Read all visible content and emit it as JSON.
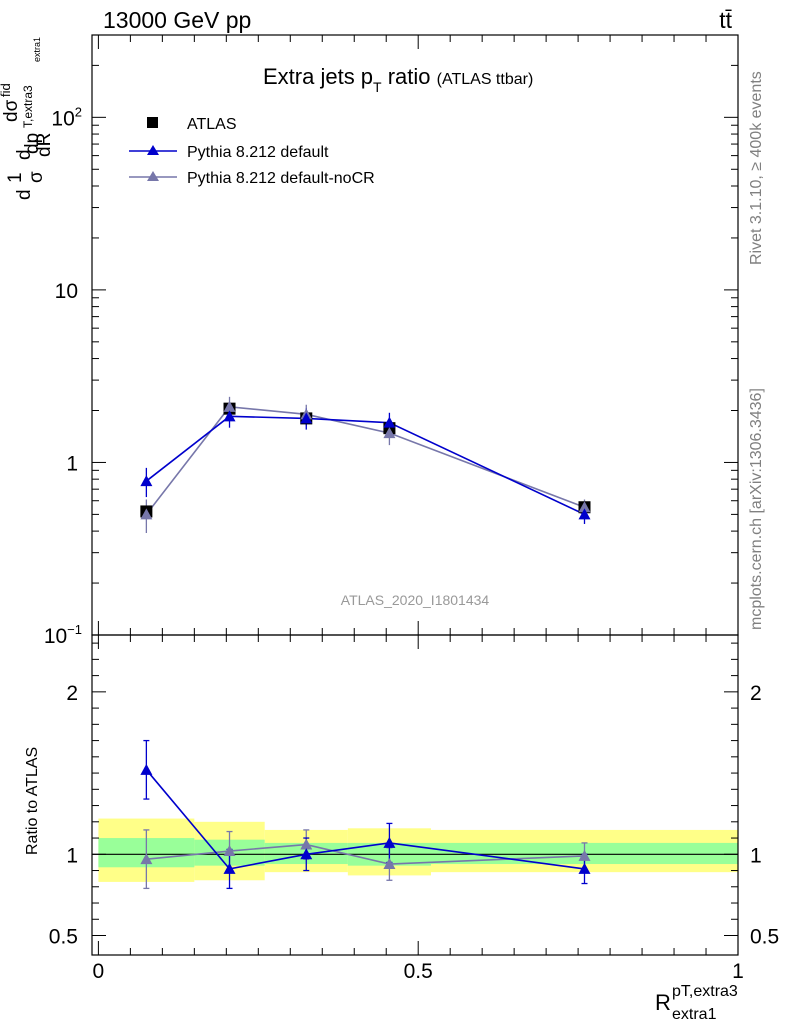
{
  "header": {
    "energy_label": "13000 GeV pp",
    "process_label": "tt̄"
  },
  "side": {
    "rivet_label": "Rivet 3.1.10, ≥ 400k events",
    "site_label": "mcplots.cern.ch [arXiv:1306.3436]"
  },
  "chart_data": [
    {
      "type": "line",
      "title": "Extra jets p",
      "title_sub": "T",
      "title_rest": " ratio",
      "title_small": "(ATLAS ttbar)",
      "watermark": "ATLAS_2020_I1801434",
      "ylabel_frac_num": "1",
      "ylabel_frac_den": "σ",
      "ylabel_d": "d",
      "ylabel_mid": "d",
      "ylabel_dsigma": "dσ",
      "ylabel_fid": "fid",
      "ylabel_dp": "dp",
      "ylabel_sub": "T,extra3",
      "ylabel_sub2": "extra1",
      "ylabel_dR": "dR",
      "yscale": "log",
      "ylim": [
        0.1,
        300
      ],
      "xlim": [
        -0.01,
        1.0
      ],
      "yticks": [
        {
          "value": 0.1,
          "base": "10",
          "exp": "−1"
        },
        {
          "value": 1,
          "base": "1",
          "exp": ""
        },
        {
          "value": 10,
          "base": "10",
          "exp": ""
        },
        {
          "value": 100,
          "base": "10",
          "exp": "2"
        }
      ],
      "legend_position": "top-left",
      "x": [
        0.075,
        0.205,
        0.325,
        0.455,
        0.76
      ],
      "series": [
        {
          "name": "ATLAS",
          "values": [
            0.52,
            2.05,
            1.8,
            1.58,
            0.55
          ],
          "color": "#000000",
          "marker": "square"
        },
        {
          "name": "Pythia 8.212 default",
          "values": [
            0.78,
            1.85,
            1.8,
            1.7,
            0.5
          ],
          "err": [
            0.15,
            0.26,
            0.25,
            0.24,
            0.06
          ],
          "color": "#0000cc",
          "marker": "triangle"
        },
        {
          "name": "Pythia 8.212 default-noCR",
          "values": [
            0.5,
            2.1,
            1.9,
            1.48,
            0.55
          ],
          "err": [
            0.11,
            0.3,
            0.26,
            0.22,
            0.06
          ],
          "color": "#7777aa",
          "marker": "triangle"
        }
      ]
    },
    {
      "type": "line",
      "ylabel": "Ratio to ATLAS",
      "xlabel_main": "R",
      "xlabel_sup": "pT,extra3",
      "xlabel_sub": "extra1",
      "ylim": [
        0.38,
        2.35
      ],
      "xlim": [
        -0.01,
        1.0
      ],
      "yticks": [
        {
          "value": 0.5,
          "label": "0.5"
        },
        {
          "value": 1,
          "label": "1"
        },
        {
          "value": 2,
          "label": "2"
        }
      ],
      "xticks": [
        {
          "value": 0,
          "label": "0"
        },
        {
          "value": 0.5,
          "label": "0.5"
        },
        {
          "value": 1,
          "label": "1"
        }
      ],
      "bands": [
        {
          "x0": 0.0,
          "x1": 0.15,
          "y1_lo": 0.92,
          "y1_hi": 1.1,
          "y2_lo": 0.83,
          "y2_hi": 1.22
        },
        {
          "x0": 0.15,
          "x1": 0.26,
          "y1_lo": 0.93,
          "y1_hi": 1.09,
          "y2_lo": 0.84,
          "y2_hi": 1.2
        },
        {
          "x0": 0.26,
          "x1": 0.39,
          "y1_lo": 0.94,
          "y1_hi": 1.07,
          "y2_lo": 0.89,
          "y2_hi": 1.15
        },
        {
          "x0": 0.39,
          "x1": 0.52,
          "y1_lo": 0.93,
          "y1_hi": 1.07,
          "y2_lo": 0.87,
          "y2_hi": 1.16
        },
        {
          "x0": 0.52,
          "x1": 1.0,
          "y1_lo": 0.94,
          "y1_hi": 1.07,
          "y2_lo": 0.89,
          "y2_hi": 1.15
        }
      ],
      "x": [
        0.075,
        0.205,
        0.325,
        0.455,
        0.76
      ],
      "series": [
        {
          "name": "Pythia 8.212 default",
          "values": [
            1.52,
            0.91,
            1.0,
            1.07,
            0.91
          ],
          "err": [
            0.18,
            0.12,
            0.1,
            0.12,
            0.09
          ],
          "color": "#0000cc"
        },
        {
          "name": "Pythia 8.212 default-noCR",
          "values": [
            0.97,
            1.02,
            1.06,
            0.94,
            0.99
          ],
          "err": [
            0.18,
            0.12,
            0.09,
            0.1,
            0.08
          ],
          "color": "#7777aa"
        }
      ]
    }
  ]
}
